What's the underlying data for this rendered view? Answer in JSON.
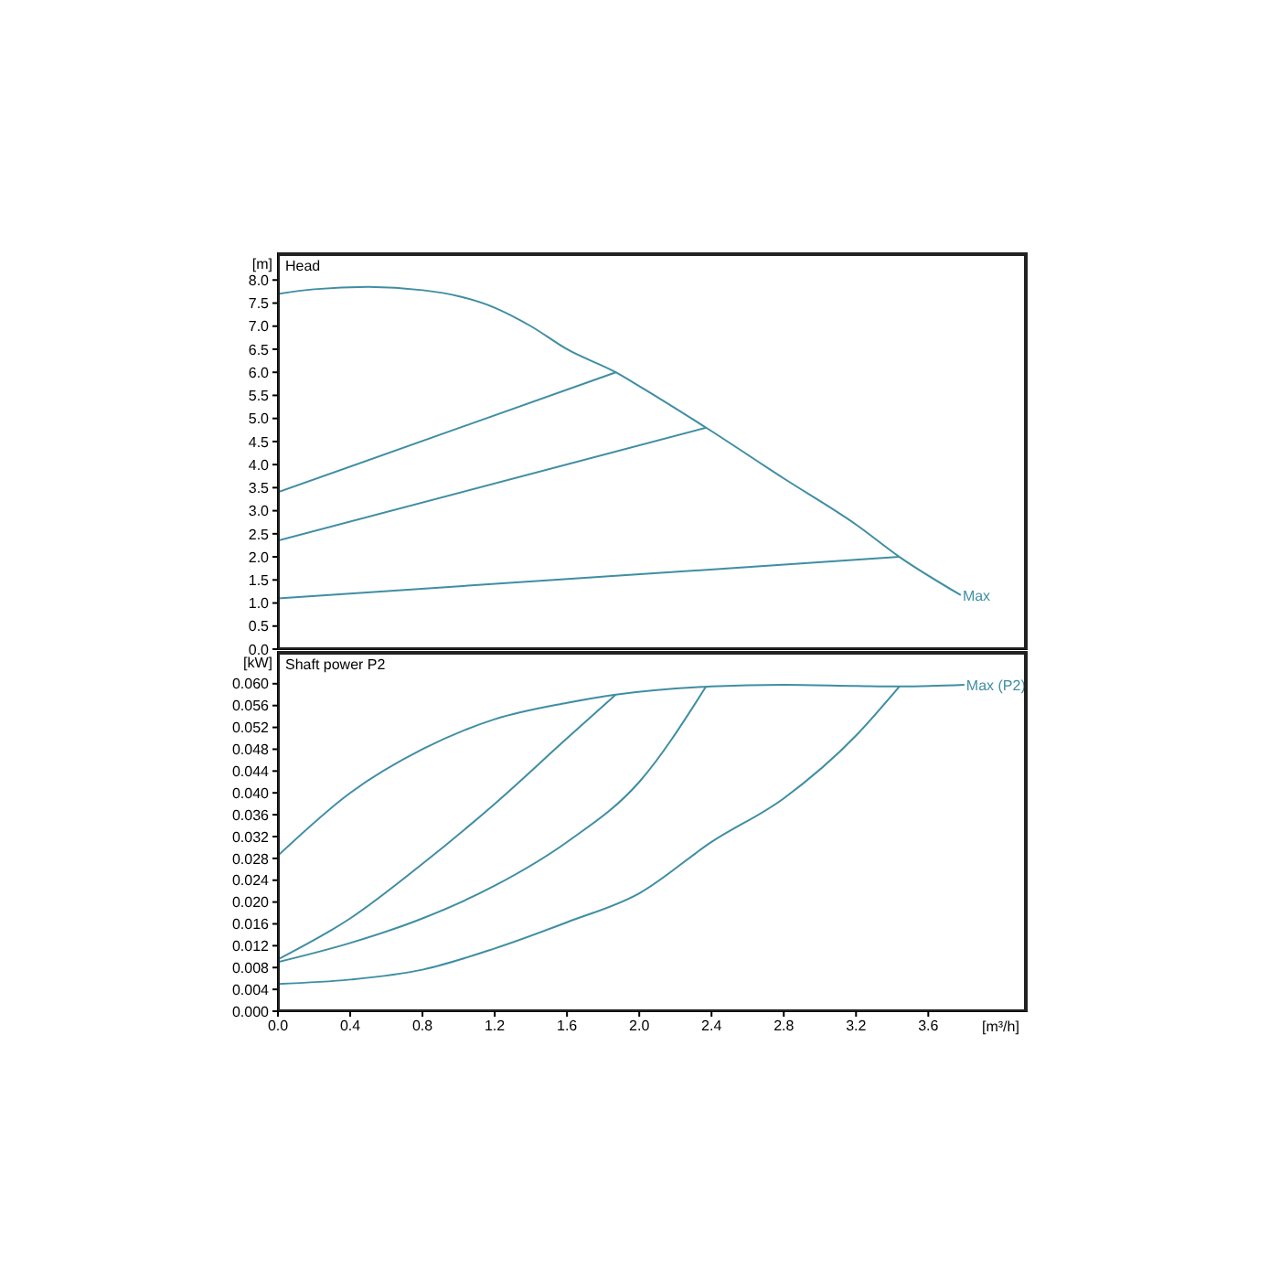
{
  "chart_data": [
    {
      "type": "line",
      "title": "Head",
      "ylabel": "[m]",
      "tick_labels": "y",
      "xlim": [
        0,
        4.15
      ],
      "xticks": [
        {
          "value": 0,
          "label": null
        },
        {
          "value": 0.4,
          "label": null
        },
        {
          "value": 0.8,
          "label": null
        },
        {
          "value": 1.2,
          "label": null
        },
        {
          "value": 1.6,
          "label": null
        },
        {
          "value": 2.0,
          "label": null
        },
        {
          "value": 2.4,
          "label": null
        },
        {
          "value": 2.8,
          "label": null
        },
        {
          "value": 3.2,
          "label": null
        },
        {
          "value": 3.6,
          "label": null
        }
      ],
      "ylim": [
        0,
        8.6
      ],
      "yticks": [
        {
          "value": 0,
          "label": "0.0"
        },
        0.5,
        {
          "value": 1,
          "label": "1.0"
        },
        1.5,
        {
          "value": 2,
          "label": "2.0"
        },
        2.5,
        {
          "value": 3,
          "label": "3.0"
        },
        3.5,
        {
          "value": 4,
          "label": "4.0"
        },
        4.5,
        {
          "value": 5,
          "label": "5.0"
        },
        5.5,
        {
          "value": 6,
          "label": "6.0"
        },
        6.5,
        {
          "value": 7,
          "label": "7.0"
        },
        7.5,
        {
          "value": 8,
          "label": "8.0"
        }
      ],
      "series": [
        {
          "color": "#3f8ea3",
          "x": [
            0,
            0.2,
            0.5,
            0.8,
            1.0,
            1.2,
            1.4,
            1.6,
            1.87,
            2.0,
            2.37,
            2.8,
            3.2,
            3.44,
            3.78
          ],
          "values": [
            7.7,
            7.8,
            7.85,
            7.78,
            7.65,
            7.4,
            7.0,
            6.5,
            6.0,
            5.7,
            4.8,
            3.7,
            2.7,
            2.0,
            1.17
          ]
        },
        {
          "color": "#3f8ea3",
          "x": [
            0,
            1.87
          ],
          "values": [
            3.4,
            6.0
          ]
        },
        {
          "color": "#3f8ea3",
          "x": [
            0,
            2.37
          ],
          "values": [
            2.35,
            4.8
          ]
        },
        {
          "color": "#3f8ea3",
          "x": [
            0,
            3.44
          ],
          "values": [
            1.1,
            2.0
          ]
        }
      ],
      "annotations": [
        {
          "text": "Max",
          "x": 3.78,
          "y": 1.17
        }
      ]
    },
    {
      "type": "line",
      "title": "Shaft power P2",
      "ylabel": "[kW]",
      "xlabel": "[m³/h]",
      "xlim": [
        0,
        4.15
      ],
      "xticks": [
        {
          "value": 0,
          "label": "0.0"
        },
        0.4,
        0.8,
        1.2,
        1.6,
        {
          "value": 2,
          "label": "2.0"
        },
        2.4,
        2.8,
        3.2,
        3.6
      ],
      "ylim": [
        0,
        0.066
      ],
      "yticks": [
        {
          "value": 0,
          "label": "0.000"
        },
        {
          "value": 0.004,
          "label": "0.004"
        },
        {
          "value": 0.008,
          "label": "0.008"
        },
        {
          "value": 0.012,
          "label": "0.012"
        },
        {
          "value": 0.016,
          "label": "0.016"
        },
        {
          "value": 0.02,
          "label": "0.020"
        },
        {
          "value": 0.024,
          "label": "0.024"
        },
        {
          "value": 0.028,
          "label": "0.028"
        },
        {
          "value": 0.032,
          "label": "0.032"
        },
        {
          "value": 0.036,
          "label": "0.036"
        },
        {
          "value": 0.04,
          "label": "0.040"
        },
        {
          "value": 0.044,
          "label": "0.044"
        },
        {
          "value": 0.048,
          "label": "0.048"
        },
        {
          "value": 0.052,
          "label": "0.052"
        },
        {
          "value": 0.056,
          "label": "0.056"
        },
        {
          "value": 0.06,
          "label": "0.060"
        }
      ],
      "series": [
        {
          "color": "#3f8ea3",
          "x": [
            0,
            0.4,
            0.8,
            1.2,
            1.6,
            1.87,
            2.4,
            2.8,
            3.2,
            3.44,
            3.8
          ],
          "values": [
            0.0285,
            0.04,
            0.048,
            0.0535,
            0.0565,
            0.058,
            0.0595,
            0.0598,
            0.0596,
            0.0595,
            0.0598
          ]
        },
        {
          "color": "#3f8ea3",
          "x": [
            0,
            0.4,
            0.8,
            1.2,
            1.6,
            1.87
          ],
          "values": [
            0.0095,
            0.017,
            0.027,
            0.038,
            0.05,
            0.058
          ]
        },
        {
          "color": "#3f8ea3",
          "x": [
            0,
            0.4,
            0.8,
            1.2,
            1.6,
            2.0,
            2.37
          ],
          "values": [
            0.009,
            0.0125,
            0.017,
            0.023,
            0.031,
            0.042,
            0.0595
          ]
        },
        {
          "color": "#3f8ea3",
          "x": [
            0,
            0.4,
            0.8,
            1.2,
            1.6,
            2.0,
            2.4,
            2.8,
            3.2,
            3.44
          ],
          "values": [
            0.005,
            0.0058,
            0.0076,
            0.0115,
            0.0163,
            0.0216,
            0.031,
            0.039,
            0.0505,
            0.0595
          ]
        }
      ],
      "annotations": [
        {
          "text": "Max (P2)",
          "x": 3.8,
          "y": 0.0598
        }
      ]
    }
  ]
}
